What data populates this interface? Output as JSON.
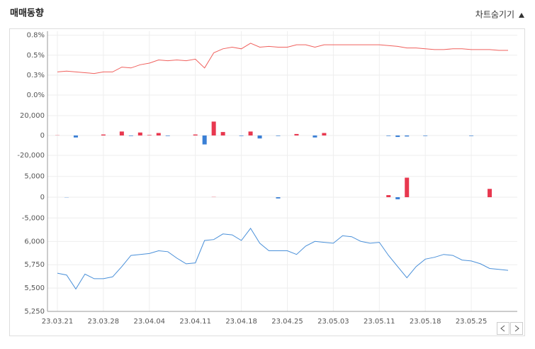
{
  "header": {
    "title": "매매동향",
    "toggle": "차트숨기기"
  },
  "chart_data": [
    {
      "type": "line",
      "color": "#f0605d",
      "grid": true,
      "ylim": [
        0,
        0.8
      ],
      "yticks": [
        {
          "value": 0,
          "label": "0.0%"
        },
        {
          "value": 0.25,
          "label": "0.3%"
        },
        {
          "value": 0.5,
          "label": "0.5%"
        },
        {
          "value": 0.75,
          "label": "0.8%"
        }
      ],
      "values": [
        0.29,
        0.3,
        0.29,
        0.28,
        0.27,
        0.29,
        0.29,
        0.35,
        0.34,
        0.38,
        0.4,
        0.44,
        0.43,
        0.44,
        0.43,
        0.45,
        0.34,
        0.53,
        0.58,
        0.6,
        0.58,
        0.65,
        0.6,
        0.61,
        0.6,
        0.6,
        0.63,
        0.63,
        0.6,
        0.63,
        0.63,
        0.63,
        0.63,
        0.63,
        0.63,
        0.63,
        0.62,
        0.61,
        0.59,
        0.59,
        0.58,
        0.57,
        0.57,
        0.58,
        0.58,
        0.57,
        0.57,
        0.57,
        0.56,
        0.56
      ]
    },
    {
      "type": "bar",
      "color": "#e8384f",
      "negative_color": "#3a7fd5",
      "grid": true,
      "ylim": [
        -25000,
        25000
      ],
      "yticks": [
        {
          "value": -20000,
          "label": "-20,000"
        },
        0,
        {
          "value": 20000,
          "label": "20,000"
        }
      ],
      "values": [
        200,
        0,
        -2000,
        0,
        0,
        1000,
        0,
        4000,
        -500,
        3000,
        500,
        2500,
        -500,
        0,
        0,
        1000,
        -9000,
        14000,
        3500,
        0,
        -500,
        4000,
        -3000,
        0,
        -500,
        0,
        1500,
        0,
        -2000,
        2500,
        0,
        0,
        0,
        0,
        0,
        0,
        -500,
        -1500,
        -1000,
        0,
        -500,
        0,
        0,
        0,
        0,
        -500,
        0,
        0,
        0,
        0
      ]
    },
    {
      "type": "bar",
      "color": "#e8384f",
      "negative_color": "#3a7fd5",
      "grid": true,
      "ylim": [
        -7000,
        7000
      ],
      "yticks": [
        {
          "value": -5000,
          "label": "-5,000"
        },
        0,
        {
          "value": 5000,
          "label": "5,000"
        }
      ],
      "values": [
        0,
        -50,
        0,
        0,
        0,
        0,
        0,
        0,
        0,
        0,
        0,
        0,
        0,
        0,
        0,
        0,
        0,
        50,
        0,
        0,
        0,
        0,
        0,
        0,
        -300,
        0,
        0,
        0,
        0,
        0,
        0,
        0,
        0,
        0,
        0,
        0,
        500,
        -500,
        4700,
        0,
        0,
        0,
        0,
        0,
        0,
        0,
        0,
        2000,
        0,
        0
      ]
    },
    {
      "type": "line",
      "color": "#4a90d9",
      "grid": true,
      "ylim": [
        5250,
        6200
      ],
      "yticks": [
        {
          "value": 5250,
          "label": "5,250"
        },
        {
          "value": 5500,
          "label": "5,500"
        },
        {
          "value": 5750,
          "label": "5,750"
        },
        {
          "value": 6000,
          "label": "6,000"
        }
      ],
      "categories": [
        "23.03.21",
        null,
        null,
        null,
        null,
        "23.03.28",
        null,
        null,
        null,
        null,
        "23.04.04",
        null,
        null,
        null,
        null,
        "23.04.11",
        null,
        null,
        null,
        null,
        "23.04.18",
        null,
        null,
        null,
        null,
        "23.04.25",
        null,
        null,
        null,
        null,
        "23.05.03",
        null,
        null,
        null,
        null,
        "23.05.11",
        null,
        null,
        null,
        null,
        "23.05.18",
        null,
        null,
        null,
        null,
        "23.05.25",
        null,
        null,
        null,
        null
      ],
      "values": [
        5660,
        5640,
        5490,
        5650,
        5600,
        5600,
        5620,
        5730,
        5850,
        5860,
        5870,
        5900,
        5890,
        5820,
        5760,
        5770,
        6010,
        6020,
        6080,
        6070,
        6010,
        6140,
        5980,
        5900,
        5900,
        5900,
        5860,
        5950,
        6000,
        5990,
        5980,
        6060,
        6050,
        6000,
        5980,
        5990,
        5850,
        5730,
        5610,
        5730,
        5810,
        5830,
        5860,
        5850,
        5800,
        5790,
        5760,
        5710,
        5700,
        5690
      ]
    }
  ]
}
